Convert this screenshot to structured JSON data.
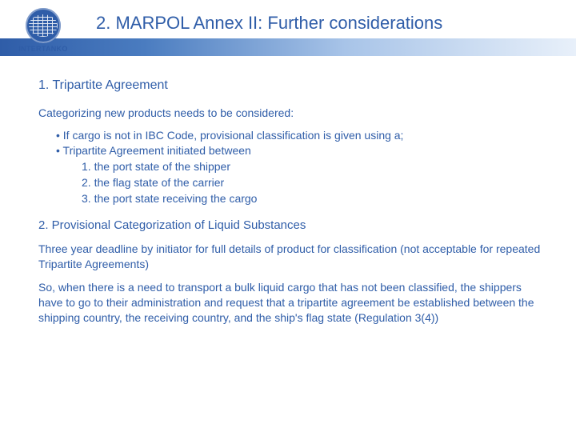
{
  "logo": {
    "text": "INTERTANKO"
  },
  "title": "2. MARPOL Annex II: Further considerations",
  "s1": {
    "heading": "1. Tripartite Agreement",
    "intro": "Categorizing new products needs to be considered:",
    "bullet1": "If cargo is not in IBC Code, provisional classification is given using a;",
    "bullet2": "Tripartite Agreement initiated between",
    "n1": "1. the port state of the shipper",
    "n2": "2. the flag state of the carrier",
    "n3": "3. the port state receiving the cargo"
  },
  "s2": {
    "heading": "2. Provisional Categorization of Liquid Substances",
    "p1": "Three year deadline by initiator for full details of product for classification (not acceptable for repeated Tripartite Agreements)",
    "p2": "So, when there is a need to transport a bulk liquid cargo that has not been classified, the shippers have to go to their administration and request that a tripartite agreement be established between the shipping country, the receiving country, and the ship's flag state (Regulation 3(4))"
  }
}
